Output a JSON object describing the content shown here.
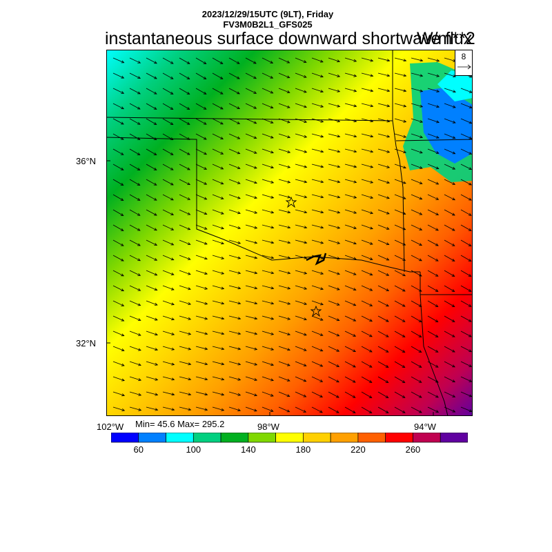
{
  "header": {
    "datetime": "2023/12/29/15UTC (9LT), Friday",
    "model": "FV3M0B2L1_GFS025",
    "title": "instantaneous surface downward shortwave flux",
    "units": "W/m**2"
  },
  "reference_vector": {
    "label": "8"
  },
  "stats": {
    "text": "Min= 45.6 Max= 295.2",
    "min": 45.6,
    "max": 295.2
  },
  "axes": {
    "lat_labels": [
      "36°N",
      "32°N"
    ],
    "lon_labels": [
      "102°W",
      "98°W",
      "94°W"
    ]
  },
  "colorbar": {
    "colors": [
      "#0000ff",
      "#0080ff",
      "#00ffff",
      "#00d080",
      "#00b020",
      "#80d800",
      "#ffff00",
      "#ffd000",
      "#ffa000",
      "#ff6000",
      "#ff0000",
      "#c00050",
      "#6000a0"
    ],
    "labels": [
      "60",
      "100",
      "140",
      "180",
      "220",
      "260"
    ]
  },
  "field_gradient": {
    "stops": [
      {
        "value": 100,
        "color": "#00ffff"
      },
      {
        "value": 120,
        "color": "#00d080"
      },
      {
        "value": 140,
        "color": "#00b020"
      },
      {
        "value": 160,
        "color": "#80d800"
      },
      {
        "value": 180,
        "color": "#ffff00"
      },
      {
        "value": 200,
        "color": "#ffd000"
      },
      {
        "value": 220,
        "color": "#ffa000"
      },
      {
        "value": 240,
        "color": "#ff6000"
      },
      {
        "value": 260,
        "color": "#ff0000"
      },
      {
        "value": 280,
        "color": "#c00050"
      },
      {
        "value": 295,
        "color": "#6000a0"
      }
    ]
  },
  "wind_direction": "northwesterly"
}
